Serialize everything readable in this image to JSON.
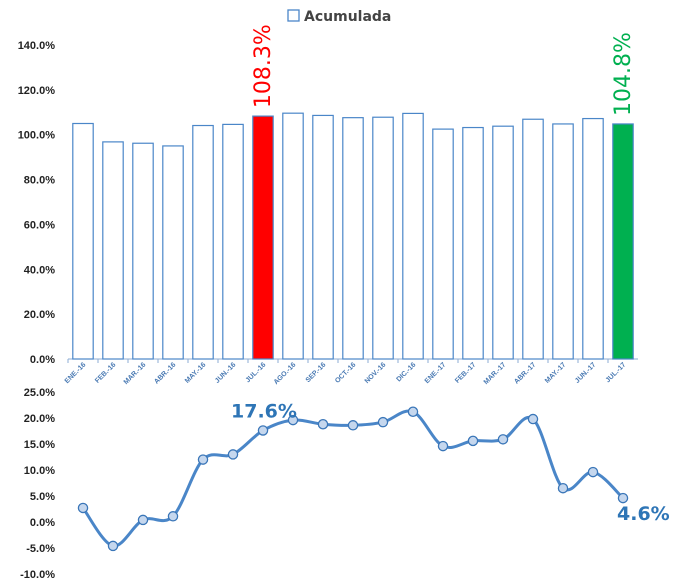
{
  "chart_data": [
    {
      "type": "bar",
      "legend": "Acumulada",
      "legend_position": "top-center",
      "categories": [
        "ENE.-16",
        "FEB.-16",
        "MAR.-16",
        "ABR.-16",
        "MAY.-16",
        "JUN.-16",
        "JUL.-16",
        "AGO.-16",
        "SEP.-16",
        "OCT.-16",
        "NOV.-16",
        "DIC.-16",
        "ENE.-17",
        "FEB.-17",
        "MAR.-17",
        "ABR.-17",
        "MAY.-17",
        "JUN.-17",
        "JUL.-17"
      ],
      "values": [
        105.0,
        96.8,
        96.2,
        95.0,
        104.1,
        104.6,
        108.3,
        109.6,
        108.6,
        107.6,
        107.8,
        109.5,
        102.5,
        103.2,
        103.8,
        106.9,
        104.8,
        107.2,
        104.8
      ],
      "ylim": [
        0,
        140
      ],
      "yticks": [
        "0.0%",
        "20.0%",
        "40.0%",
        "60.0%",
        "80.0%",
        "100.0%",
        "120.0%",
        "140.0%"
      ],
      "grid": false,
      "highlights": [
        {
          "index": 6,
          "label": "108.3%",
          "color": "#ff0000"
        },
        {
          "index": 18,
          "label": "104.8%",
          "color": "#00b050"
        }
      ],
      "bar_outline_color": "#4a86c8"
    },
    {
      "type": "line",
      "values": [
        2.7,
        -4.6,
        0.4,
        1.1,
        12.0,
        13.0,
        17.6,
        19.6,
        18.8,
        18.6,
        19.2,
        21.2,
        14.6,
        15.6,
        15.9,
        19.8,
        6.5,
        9.6,
        4.6
      ],
      "ylim": [
        -10,
        25
      ],
      "yticks": [
        "-10.0%",
        "-5.0%",
        "0.0%",
        "5.0%",
        "10.0%",
        "15.0%",
        "20.0%",
        "25.0%"
      ],
      "grid": false,
      "annotations": [
        {
          "index": 6,
          "label": "17.6%"
        },
        {
          "index": 18,
          "label": "4.6%"
        }
      ],
      "line_color": "#4a86c8",
      "label_color": "#2e75b6"
    }
  ]
}
